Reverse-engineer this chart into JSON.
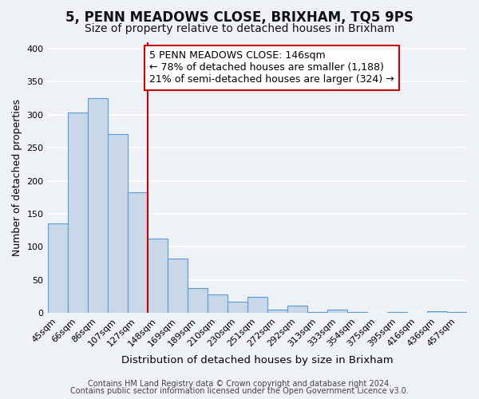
{
  "title": "5, PENN MEADOWS CLOSE, BRIXHAM, TQ5 9PS",
  "subtitle": "Size of property relative to detached houses in Brixham",
  "xlabel": "Distribution of detached houses by size in Brixham",
  "ylabel": "Number of detached properties",
  "bar_labels": [
    "45sqm",
    "66sqm",
    "86sqm",
    "107sqm",
    "127sqm",
    "148sqm",
    "169sqm",
    "189sqm",
    "210sqm",
    "230sqm",
    "251sqm",
    "272sqm",
    "292sqm",
    "313sqm",
    "333sqm",
    "354sqm",
    "375sqm",
    "395sqm",
    "416sqm",
    "436sqm",
    "457sqm"
  ],
  "bar_values": [
    135,
    303,
    325,
    271,
    183,
    112,
    83,
    38,
    28,
    17,
    25,
    5,
    11,
    1,
    5,
    1,
    0,
    2,
    0,
    3,
    2
  ],
  "bar_color": "#c8d8e8",
  "bar_edge_color": "#5b9bd5",
  "vline_index": 5,
  "vline_color": "#cc0000",
  "annotation_line1": "5 PENN MEADOWS CLOSE: 146sqm",
  "annotation_line2": "← 78% of detached houses are smaller (1,188)",
  "annotation_line3": "21% of semi-detached houses are larger (324) →",
  "annotation_box_color": "#ffffff",
  "annotation_box_edge": "#cc0000",
  "footer_line1": "Contains HM Land Registry data © Crown copyright and database right 2024.",
  "footer_line2": "Contains public sector information licensed under the Open Government Licence v3.0.",
  "ylim": [
    0,
    410
  ],
  "yticks": [
    0,
    50,
    100,
    150,
    200,
    250,
    300,
    350,
    400
  ],
  "title_fontsize": 12,
  "subtitle_fontsize": 10,
  "xlabel_fontsize": 9.5,
  "ylabel_fontsize": 9,
  "tick_fontsize": 8,
  "annotation_fontsize": 9,
  "footer_fontsize": 7,
  "background_color": "#eef2f7",
  "plot_bg_color": "#eef2f7"
}
